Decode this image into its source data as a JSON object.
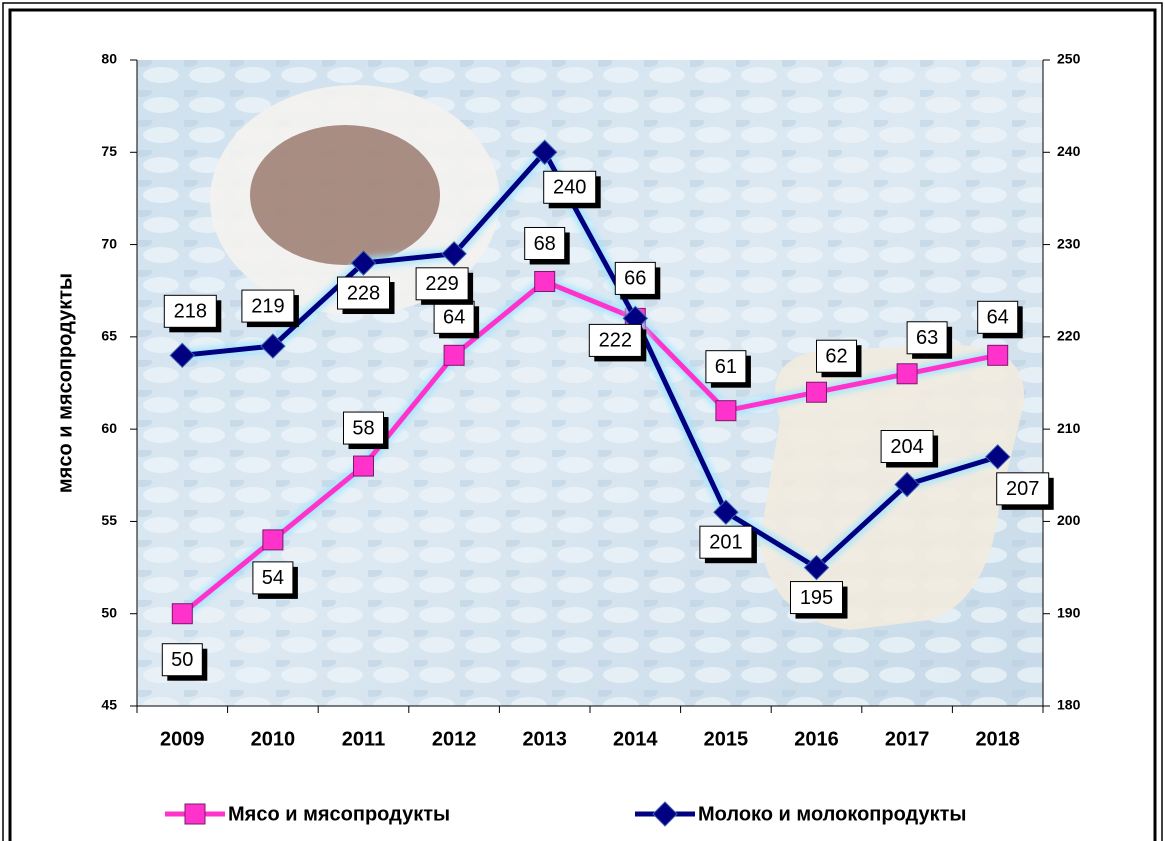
{
  "chart_data": {
    "type": "line",
    "y_label": "мясо и мясопродукты",
    "categories": [
      "2009",
      "2010",
      "2011",
      "2012",
      "2013",
      "2014",
      "2015",
      "2016",
      "2017",
      "2018"
    ],
    "series": [
      {
        "name": "Мясо и мясопродукты",
        "color": "#ff33cc",
        "marker": "square",
        "values": [
          50,
          54,
          58,
          64,
          68,
          66,
          61,
          62,
          63,
          64
        ]
      },
      {
        "name": "Молоко и молокопродукты",
        "color": "#000080",
        "marker": "diamond",
        "axis": "y2",
        "values": [
          218,
          219,
          228,
          229,
          240,
          222,
          201,
          195,
          204,
          207
        ]
      }
    ],
    "ylim": [
      45,
      80
    ],
    "yticks": [
      45,
      50,
      55,
      60,
      65,
      70,
      75,
      80
    ],
    "y2lim": [
      180,
      250
    ],
    "y2ticks": [
      180,
      190,
      200,
      210,
      220,
      230,
      240,
      250
    ],
    "legend": "bottom"
  }
}
